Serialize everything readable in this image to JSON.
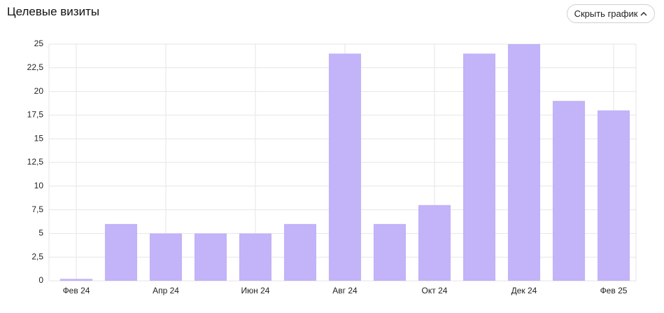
{
  "button_label": "Скрыть график",
  "chart_data": {
    "type": "bar",
    "title": "Целевые визиты",
    "categories": [
      "Фев 24",
      null,
      "Апр 24",
      null,
      "Июн 24",
      null,
      "Авг 24",
      null,
      "Окт 24",
      null,
      "Дек 24",
      null,
      "Фев 25"
    ],
    "values": [
      0.2,
      6,
      5,
      5,
      5,
      6,
      24,
      6,
      8,
      24,
      25,
      19,
      18
    ],
    "color": "#c3b3f8",
    "ylim": [
      0,
      25
    ],
    "yticks": [
      0,
      {
        "value": 2.5,
        "label": "2,5"
      },
      5,
      {
        "value": 7.5,
        "label": "7,5"
      },
      10,
      {
        "value": 12.5,
        "label": "12,5"
      },
      15,
      {
        "value": 17.5,
        "label": "17,5"
      },
      20,
      {
        "value": 22.5,
        "label": "22,5"
      },
      25
    ],
    "grid": true
  }
}
